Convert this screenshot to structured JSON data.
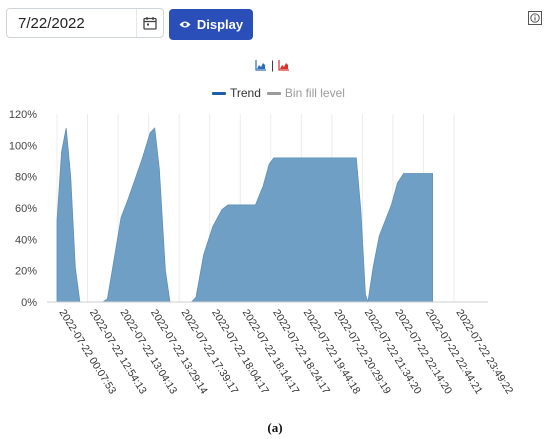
{
  "date_picker": {
    "value": "7/22/2022"
  },
  "display_button": {
    "label": "Display"
  },
  "icons": {
    "calendar": "calendar-icon",
    "eye": "eye-icon",
    "info": "info-icon",
    "area_chart": "area-chart-icon",
    "line_chart": "line-chart-icon"
  },
  "toolbar": {
    "separator": "|"
  },
  "colors": {
    "button": "#2b4fb8",
    "area_fill": "#6f9fc4",
    "trend": "#1f5fa8",
    "bin_fill": "#9a9a9a",
    "chart_icon_blue": "#2d6fb7",
    "chart_icon_red": "#d9302b"
  },
  "caption": "(a)",
  "chart_data": {
    "type": "area",
    "legend": [
      "Trend",
      "Bin fill level"
    ],
    "legend_position": "top-center",
    "ylim": [
      0,
      120
    ],
    "yticks": [
      0,
      20,
      40,
      60,
      80,
      100,
      120
    ],
    "ytick_labels": [
      "0%",
      "20%",
      "40%",
      "60%",
      "80%",
      "100%",
      "120%"
    ],
    "grid": "vertical",
    "categories": [
      "2022-07-22 00:07:53",
      "2022-07-22 12:54:13",
      "2022-07-22 13:04:13",
      "2022-07-22 13:29:14",
      "2022-07-22 17:39:17",
      "2022-07-22 18:04:17",
      "2022-07-22 18:14:17",
      "2022-07-22 18:24:17",
      "2022-07-22 19:44:18",
      "2022-07-22 20:29:19",
      "2022-07-22 21:34:20",
      "2022-07-22 22:14:20",
      "2022-07-22 22:44:21",
      "2022-07-22 23:49:22"
    ],
    "series": [
      {
        "name": "Bin fill level",
        "points": [
          [
            0.0,
            52
          ],
          [
            0.15,
            96
          ],
          [
            0.3,
            111
          ],
          [
            0.45,
            80
          ],
          [
            0.6,
            22
          ],
          [
            0.75,
            0
          ],
          [
            1.5,
            0
          ],
          [
            1.65,
            2
          ],
          [
            1.85,
            25
          ],
          [
            2.1,
            54
          ],
          [
            2.3,
            64
          ],
          [
            2.55,
            78
          ],
          [
            2.8,
            92
          ],
          [
            3.05,
            108
          ],
          [
            3.2,
            111
          ],
          [
            3.35,
            85
          ],
          [
            3.55,
            20
          ],
          [
            3.7,
            0
          ],
          [
            4.4,
            0
          ],
          [
            4.55,
            3
          ],
          [
            4.8,
            30
          ],
          [
            5.1,
            48
          ],
          [
            5.4,
            59
          ],
          [
            5.6,
            62
          ],
          [
            6.5,
            62
          ],
          [
            6.75,
            74
          ],
          [
            6.95,
            88
          ],
          [
            7.1,
            92
          ],
          [
            9.8,
            92
          ],
          [
            9.95,
            58
          ],
          [
            10.1,
            5
          ],
          [
            10.18,
            0
          ],
          [
            10.35,
            22
          ],
          [
            10.55,
            42
          ],
          [
            10.95,
            62
          ],
          [
            11.15,
            76
          ],
          [
            11.35,
            82
          ],
          [
            12.3,
            82
          ]
        ]
      }
    ]
  }
}
